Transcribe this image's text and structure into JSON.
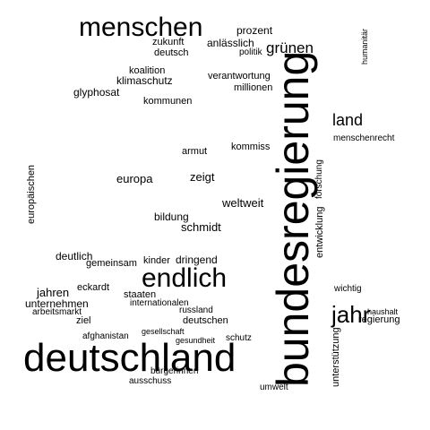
{
  "words": [
    "deutschland",
    "bundesregierung",
    "endlich",
    "menschen",
    "jahr",
    "grünen",
    "land",
    "zukunft",
    "anlässlich",
    "prozent",
    "deutsch",
    "politik",
    "koalition",
    "klimaschutz",
    "verantwortung",
    "millionen",
    "glyphosat",
    "kommunen",
    "armut",
    "kommiss",
    "menschenrecht",
    "europa",
    "zeigt",
    "weltweit",
    "schmidt",
    "bildung",
    "kinder",
    "dringend",
    "deutlich",
    "jahren",
    "unternehmen",
    "gemeinsam",
    "eckardt",
    "staaten",
    "internationalen",
    "deutschen",
    "russland",
    "afghanistan",
    "gesellschaft",
    "gesundheit",
    "bürgerinnen",
    "ausschuss",
    "umwelt",
    "regierung",
    "haushalt",
    "europäischen",
    "humanitär",
    "entwicklung",
    "unterstützung",
    "wichtig",
    "arbeitsmarkt",
    "schutz",
    "ziel",
    "forschung"
  ]
}
